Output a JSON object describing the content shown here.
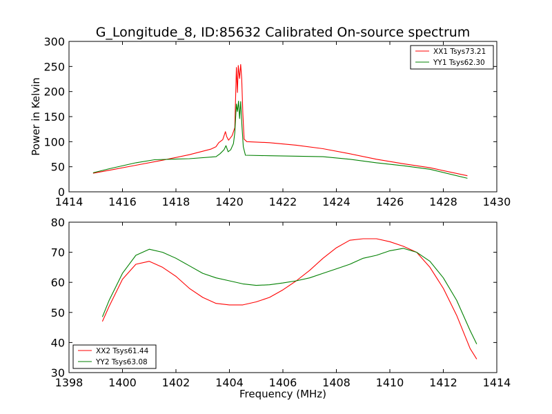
{
  "chart_data": [
    {
      "type": "line",
      "title": "G_Longitude_8, ID:85632 Calibrated On-source spectrum",
      "xlabel": "",
      "ylabel": "Power in Kelvin",
      "xlim": [
        1414,
        1430
      ],
      "ylim": [
        0,
        300
      ],
      "xticks": [
        "1414",
        "1416",
        "1418",
        "1420",
        "1422",
        "1424",
        "1426",
        "1428",
        "1430"
      ],
      "yticks": [
        "0",
        "50",
        "100",
        "150",
        "200",
        "250",
        "300"
      ],
      "grid": false,
      "legend_position": "top-right",
      "series": [
        {
          "name": "XX1 Tsys73.21",
          "color": "#ff0000",
          "points": [
            [
              1414.9,
              37
            ],
            [
              1415.5,
              43
            ],
            [
              1416.5,
              53
            ],
            [
              1417.5,
              63
            ],
            [
              1418.5,
              74
            ],
            [
              1419.3,
              85
            ],
            [
              1419.5,
              90
            ],
            [
              1419.6,
              98
            ],
            [
              1419.75,
              104
            ],
            [
              1419.85,
              120
            ],
            [
              1419.9,
              110
            ],
            [
              1419.97,
              103
            ],
            [
              1420.1,
              112
            ],
            [
              1420.2,
              128
            ],
            [
              1420.26,
              248
            ],
            [
              1420.3,
              198
            ],
            [
              1420.33,
              252
            ],
            [
              1420.38,
              226
            ],
            [
              1420.42,
              254
            ],
            [
              1420.46,
              226
            ],
            [
              1420.5,
              158
            ],
            [
              1420.55,
              105
            ],
            [
              1420.65,
              100
            ],
            [
              1421.5,
              98
            ],
            [
              1422.5,
              93
            ],
            [
              1423.5,
              86
            ],
            [
              1424.5,
              76
            ],
            [
              1425.5,
              65
            ],
            [
              1426.5,
              56
            ],
            [
              1427.5,
              48
            ],
            [
              1428.9,
              32
            ]
          ]
        },
        {
          "name": "YY1 Tsys62.30",
          "color": "#008000",
          "points": [
            [
              1414.9,
              38
            ],
            [
              1415.5,
              46
            ],
            [
              1416.5,
              58
            ],
            [
              1417.2,
              64
            ],
            [
              1418.5,
              66
            ],
            [
              1419.5,
              70
            ],
            [
              1419.65,
              76
            ],
            [
              1419.8,
              84
            ],
            [
              1419.87,
              92
            ],
            [
              1419.95,
              80
            ],
            [
              1420.05,
              84
            ],
            [
              1420.15,
              96
            ],
            [
              1420.2,
              118
            ],
            [
              1420.26,
              175
            ],
            [
              1420.3,
              160
            ],
            [
              1420.34,
              181
            ],
            [
              1420.38,
              146
            ],
            [
              1420.42,
              180
            ],
            [
              1420.47,
              130
            ],
            [
              1420.52,
              90
            ],
            [
              1420.6,
              73
            ],
            [
              1421.5,
              72
            ],
            [
              1423.5,
              70
            ],
            [
              1424.5,
              65
            ],
            [
              1425.5,
              58
            ],
            [
              1426.5,
              52
            ],
            [
              1427.5,
              45
            ],
            [
              1428.9,
              27
            ]
          ]
        }
      ]
    },
    {
      "type": "line",
      "title": "",
      "xlabel": "Frequency (MHz)",
      "ylabel": "",
      "xlim": [
        1398,
        1414
      ],
      "ylim": [
        30,
        80
      ],
      "xticks": [
        "1398",
        "1400",
        "1402",
        "1404",
        "1406",
        "1408",
        "1410",
        "1412",
        "1414"
      ],
      "yticks": [
        "30",
        "40",
        "50",
        "60",
        "70",
        "80"
      ],
      "grid": false,
      "legend_position": "bottom-left",
      "series": [
        {
          "name": "XX2 Tsys61.44",
          "color": "#ff0000",
          "points": [
            [
              1399.25,
              47
            ],
            [
              1399.5,
              52
            ],
            [
              1400,
              61
            ],
            [
              1400.5,
              66
            ],
            [
              1401,
              67
            ],
            [
              1401.5,
              65
            ],
            [
              1402,
              62
            ],
            [
              1402.5,
              58
            ],
            [
              1403,
              55
            ],
            [
              1403.5,
              53
            ],
            [
              1404,
              52.5
            ],
            [
              1404.5,
              52.5
            ],
            [
              1405,
              53.5
            ],
            [
              1405.5,
              55
            ],
            [
              1406,
              57.5
            ],
            [
              1406.5,
              60.5
            ],
            [
              1407,
              64
            ],
            [
              1407.5,
              68
            ],
            [
              1408,
              71.5
            ],
            [
              1408.5,
              74
            ],
            [
              1409,
              74.5
            ],
            [
              1409.5,
              74.5
            ],
            [
              1410,
              73.5
            ],
            [
              1410.5,
              72
            ],
            [
              1411,
              70
            ],
            [
              1411.5,
              65
            ],
            [
              1412,
              58
            ],
            [
              1412.5,
              49
            ],
            [
              1413,
              38
            ],
            [
              1413.25,
              34.5
            ]
          ]
        },
        {
          "name": "YY2 Tsys63.08",
          "color": "#008000",
          "points": [
            [
              1399.25,
              48.5
            ],
            [
              1399.5,
              54
            ],
            [
              1400,
              63
            ],
            [
              1400.5,
              69
            ],
            [
              1401,
              71
            ],
            [
              1401.5,
              70
            ],
            [
              1402,
              68
            ],
            [
              1402.5,
              65.5
            ],
            [
              1403,
              63
            ],
            [
              1403.5,
              61.5
            ],
            [
              1404,
              60.5
            ],
            [
              1404.5,
              59.5
            ],
            [
              1405,
              59
            ],
            [
              1405.5,
              59.2
            ],
            [
              1406,
              59.8
            ],
            [
              1406.5,
              60.5
            ],
            [
              1407,
              61.5
            ],
            [
              1407.5,
              63
            ],
            [
              1408,
              64.5
            ],
            [
              1408.5,
              66
            ],
            [
              1409,
              68
            ],
            [
              1409.5,
              69
            ],
            [
              1410,
              70.5
            ],
            [
              1410.5,
              71.3
            ],
            [
              1411,
              70
            ],
            [
              1411.5,
              67
            ],
            [
              1412,
              61.5
            ],
            [
              1412.5,
              54
            ],
            [
              1413,
              44
            ],
            [
              1413.25,
              39.5
            ]
          ]
        }
      ]
    }
  ]
}
